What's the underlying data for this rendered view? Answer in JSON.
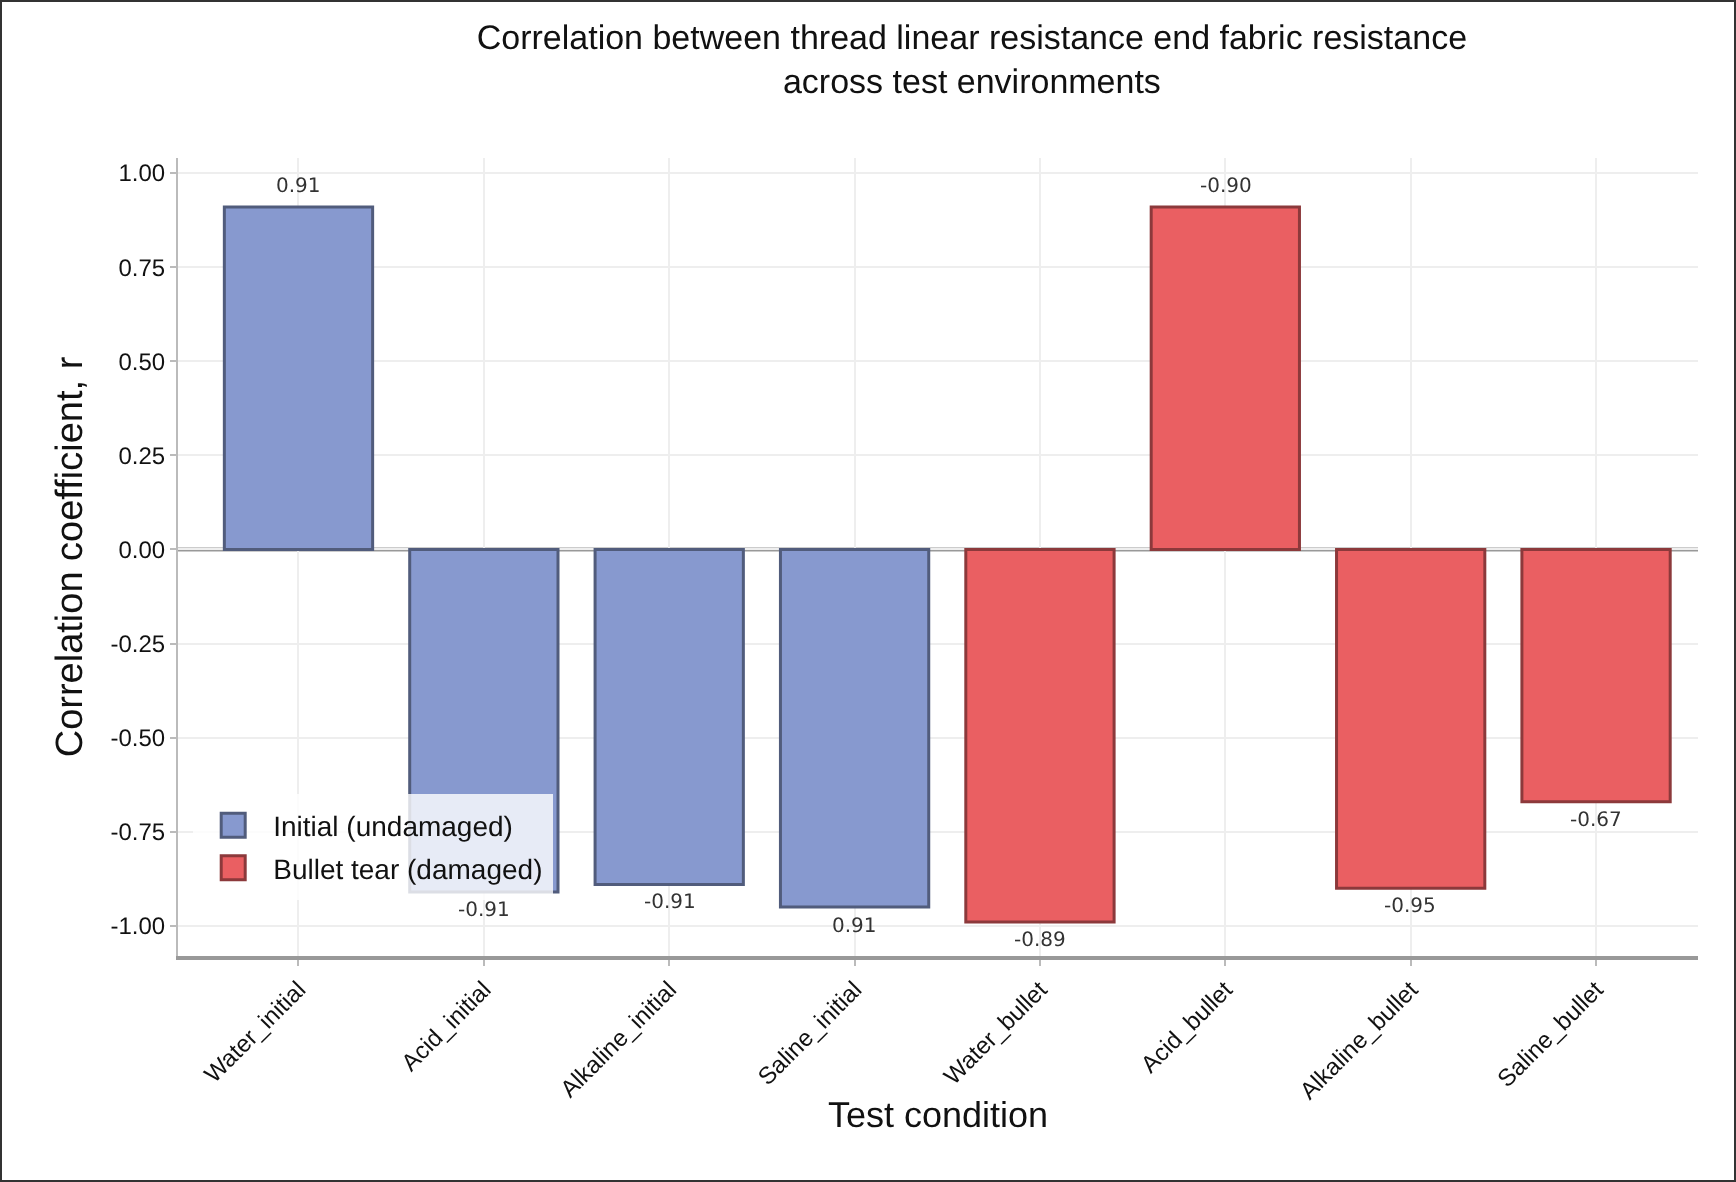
{
  "chart_data": {
    "type": "bar",
    "title": "Correlation between thread linear resistance end fabric resistance\nacross test environments",
    "xlabel": "Test condition",
    "ylabel": "Correlation coefficient, r",
    "categories": [
      "Water_initial",
      "Acid_initial",
      "Alkaline_initial",
      "Saline_initial",
      "Water_bullet",
      "Acid_bullet",
      "Alkaline_bullet",
      "Saline_bullet"
    ],
    "series": [
      {
        "name": "Initial (undamaged)",
        "color": "#8799cf",
        "values": [
          0.91,
          -0.91,
          -0.89,
          -0.95,
          null,
          null,
          null,
          null
        ]
      },
      {
        "name": "Bullet tear (damaged)",
        "color": "#ea5f62",
        "values": [
          null,
          null,
          null,
          null,
          -0.99,
          0.91,
          -0.9,
          -0.67
        ]
      }
    ],
    "annotations": [
      "0.91",
      "-0.91",
      "-0.91",
      "0.91",
      "-0.89",
      "-0.90",
      "-0.95",
      "-0.67"
    ],
    "ylim": [
      -1.08,
      1.04
    ],
    "yticks": [
      {
        "value": -1,
        "label": "-1.00"
      },
      {
        "value": -0.75,
        "label": "-0.75"
      },
      {
        "value": -0.5,
        "label": "-0.50"
      },
      {
        "value": -0.25,
        "label": "-0.25"
      },
      {
        "value": 0,
        "label": "0.00"
      },
      {
        "value": 0.25,
        "label": "0.25"
      },
      {
        "value": 0.5,
        "label": "0.50"
      },
      {
        "value": 0.75,
        "label": "0.75"
      },
      {
        "value": 1,
        "label": "1.00"
      }
    ],
    "ref_lines": [
      {
        "axis": "y",
        "value": 0,
        "color": "#999999"
      }
    ],
    "grid": true,
    "legend": "bottom left"
  }
}
